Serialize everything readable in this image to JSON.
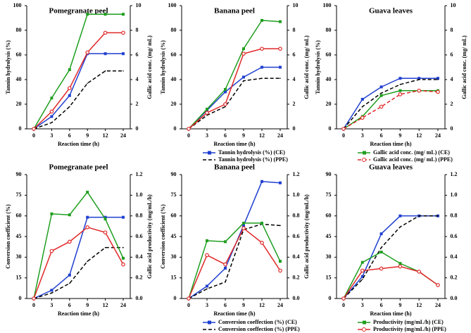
{
  "chart_data": [
    {
      "type": "line",
      "title": "Pomegranate peel",
      "xlabel": "Reaction time (h)",
      "ylabel": "Tannin hydrolysis (%)",
      "y2label": "Gallic acid conc. (mg/ mL)",
      "categories": [
        "0",
        "3",
        "6",
        "9",
        "12",
        "24"
      ],
      "ylim": [
        0,
        100
      ],
      "yticks": [
        0,
        20,
        40,
        60,
        80,
        100
      ],
      "y2lim": [
        0,
        10
      ],
      "y2ticks": [
        0,
        2,
        4,
        6,
        8,
        10
      ],
      "series": [
        {
          "color": "#1f3fd0",
          "marker": "square",
          "linestyle": "solid",
          "values": [
            0,
            10,
            27,
            61,
            61,
            61
          ]
        },
        {
          "color": "#000000",
          "marker": "none",
          "linestyle": "dashed",
          "values": [
            0,
            5,
            18,
            37,
            47,
            47
          ]
        },
        {
          "color": "#1f9e1f",
          "marker": "square",
          "linestyle": "solid",
          "axis": "y2",
          "values": [
            0,
            2.5,
            4.8,
            9.3,
            9.3,
            9.3
          ]
        },
        {
          "color": "#e02828",
          "marker": "circle",
          "linestyle": "solid",
          "axis": "y2",
          "values": [
            0,
            1.4,
            3.3,
            6.2,
            7.8,
            7.8
          ]
        }
      ]
    },
    {
      "type": "line",
      "title": "Banana peel",
      "xlabel": "Reaction time (h)",
      "ylabel": "Tannin hydrolysis (%)",
      "y2label": "Gallic acid conc. (mg/ mL)",
      "categories": [
        "0",
        "3",
        "6",
        "9",
        "12",
        "24"
      ],
      "ylim": [
        0,
        100
      ],
      "yticks": [
        0,
        20,
        40,
        60,
        80,
        100
      ],
      "y2lim": [
        0,
        10
      ],
      "y2ticks": [
        0,
        2,
        4,
        6,
        8,
        10
      ],
      "series": [
        {
          "name": "Tannin hydrolysis (%) (CE)",
          "color": "#1f3fd0",
          "marker": "square",
          "linestyle": "solid",
          "values": [
            0,
            15,
            30,
            42,
            50,
            50
          ]
        },
        {
          "name": "Tannin hydrolysis (%) (PPE)",
          "color": "#000000",
          "marker": "none",
          "linestyle": "dashed",
          "values": [
            0,
            11,
            18,
            39,
            41,
            41
          ]
        },
        {
          "color": "#1f9e1f",
          "marker": "square",
          "linestyle": "solid",
          "axis": "y2",
          "values": [
            0,
            1.6,
            3.2,
            6.5,
            8.8,
            8.7
          ]
        },
        {
          "color": "#e02828",
          "marker": "circle",
          "linestyle": "solid",
          "axis": "y2",
          "values": [
            0,
            1.3,
            2.0,
            6.1,
            6.5,
            6.5
          ]
        }
      ]
    },
    {
      "type": "line",
      "title": "Guava leaves",
      "xlabel": "Reaction time (h)",
      "ylabel": "Tannin hydrolysis (%)",
      "y2label": "Gallic acid conc. (mg/ mL)",
      "categories": [
        "0",
        "3",
        "6",
        "9",
        "12",
        "24"
      ],
      "ylim": [
        0,
        100
      ],
      "yticks": [
        0,
        20,
        40,
        60,
        80,
        100
      ],
      "y2lim": [
        0,
        10
      ],
      "y2ticks": [
        0,
        2,
        4,
        6,
        8,
        10
      ],
      "series": [
        {
          "color": "#1f3fd0",
          "marker": "square",
          "linestyle": "solid",
          "values": [
            0,
            24,
            34,
            41,
            41,
            41
          ]
        },
        {
          "color": "#000000",
          "marker": "none",
          "linestyle": "dashed",
          "values": [
            0,
            18,
            29,
            36,
            40,
            40
          ]
        },
        {
          "name": "Gallic acid conc. (mg/ mL) (CE)",
          "color": "#1f9e1f",
          "marker": "square",
          "linestyle": "solid",
          "axis": "y2",
          "values": [
            0,
            1.0,
            2.7,
            3.1,
            3.1,
            3.1
          ]
        },
        {
          "name": "Gallic acid conc. (mg/ mL) (PPE)",
          "color": "#e02828",
          "marker": "circle",
          "linestyle": "dashed",
          "axis": "y2",
          "values": [
            0,
            0.9,
            1.8,
            2.8,
            3.1,
            3.0
          ]
        }
      ]
    },
    {
      "type": "line",
      "title": "Pomegranate peel",
      "xlabel": "Reaction time (h)",
      "ylabel": "Conversion coefficient  (%)",
      "y2label": "Gallic acid productivity (mg/mL/h)",
      "categories": [
        "0",
        "3",
        "6",
        "9",
        "12",
        "24"
      ],
      "ylim": [
        0,
        90
      ],
      "yticks": [
        0,
        15,
        30,
        45,
        60,
        75,
        90
      ],
      "y2lim": [
        0,
        1.2
      ],
      "y2ticks": [
        {
          "value": 0,
          "label": "0.0"
        },
        0.2,
        0.4,
        0.6,
        0.8,
        {
          "value": 1,
          "label": "1.0"
        },
        1.2
      ],
      "series": [
        {
          "color": "#1f3fd0",
          "marker": "square",
          "linestyle": "solid",
          "values": [
            0,
            6,
            17,
            59,
            59,
            59
          ]
        },
        {
          "color": "#000000",
          "marker": "none",
          "linestyle": "dashed",
          "values": [
            0,
            4,
            11,
            27,
            37,
            37
          ]
        },
        {
          "color": "#1f9e1f",
          "marker": "square",
          "linestyle": "solid",
          "axis": "y2",
          "values": [
            0,
            0.82,
            0.81,
            1.03,
            0.77,
            0.39
          ]
        },
        {
          "color": "#e02828",
          "marker": "circle",
          "linestyle": "solid",
          "axis": "y2",
          "values": [
            0,
            0.46,
            0.55,
            0.69,
            0.64,
            0.33
          ]
        }
      ]
    },
    {
      "type": "line",
      "title": "Banana peel",
      "xlabel": "Reaction time (h)",
      "ylabel": "Conversion coefficient (%)",
      "y2label": "Gallic acid productivity (mg/mL/h)",
      "categories": [
        "0",
        "3",
        "6",
        "9",
        "12",
        "24"
      ],
      "ylim": [
        0,
        90
      ],
      "yticks": [
        0,
        15,
        30,
        45,
        60,
        75,
        90
      ],
      "y2lim": [
        0,
        1.2
      ],
      "y2ticks": [
        {
          "value": 0,
          "label": "0.0"
        },
        0.2,
        0.4,
        0.6,
        0.8,
        {
          "value": 1,
          "label": "1.0"
        },
        1.2
      ],
      "series": [
        {
          "name": "Conversion coeffection (%) (CE)",
          "color": "#1f3fd0",
          "marker": "square",
          "linestyle": "solid",
          "values": [
            0,
            9,
            22,
            53,
            85,
            84
          ]
        },
        {
          "name": "Conversion coeffection (%) (PPE)",
          "color": "#000000",
          "marker": "none",
          "linestyle": "dashed",
          "values": [
            0,
            7,
            12,
            50,
            54,
            53
          ]
        },
        {
          "color": "#1f9e1f",
          "marker": "square",
          "linestyle": "solid",
          "axis": "y2",
          "values": [
            0,
            0.56,
            0.55,
            0.73,
            0.73,
            0.36
          ]
        },
        {
          "color": "#e02828",
          "marker": "circle",
          "linestyle": "solid",
          "axis": "y2",
          "values": [
            0,
            0.42,
            0.33,
            0.68,
            0.54,
            0.27
          ]
        }
      ]
    },
    {
      "type": "line",
      "title": "Guava leaves",
      "xlabel": "Reaction time (h)",
      "categories": [
        "0",
        "3",
        "6",
        "9",
        "12",
        "24"
      ],
      "ylim": [
        0,
        90
      ],
      "yticks": [
        0,
        15,
        30,
        45,
        60,
        75,
        90
      ],
      "y2lim": [
        0,
        1.2
      ],
      "y2ticks": [
        {
          "value": 0,
          "label": "0.0"
        },
        0.2,
        0.4,
        0.6,
        0.8,
        {
          "value": 1,
          "label": "1.0"
        },
        1.2
      ],
      "series": [
        {
          "color": "#1f3fd0",
          "marker": "square",
          "linestyle": "solid",
          "values": [
            0,
            16,
            47,
            60,
            60,
            60
          ]
        },
        {
          "color": "#000000",
          "marker": "none",
          "linestyle": "dashed",
          "values": [
            0,
            14,
            37,
            52,
            60,
            60
          ]
        },
        {
          "name": "Productivity (mg/mL/h) (CE)",
          "color": "#1f9e1f",
          "marker": "square",
          "linestyle": "solid",
          "axis": "y2",
          "values": [
            0,
            0.35,
            0.45,
            0.34,
            0.26,
            0.13
          ]
        },
        {
          "name": "Productivity (mg/mL/h) (PPE)",
          "color": "#e02828",
          "marker": "circle",
          "linestyle": "solid",
          "axis": "y2",
          "values": [
            0,
            0.27,
            0.29,
            0.31,
            0.26,
            0.13
          ]
        }
      ]
    }
  ]
}
